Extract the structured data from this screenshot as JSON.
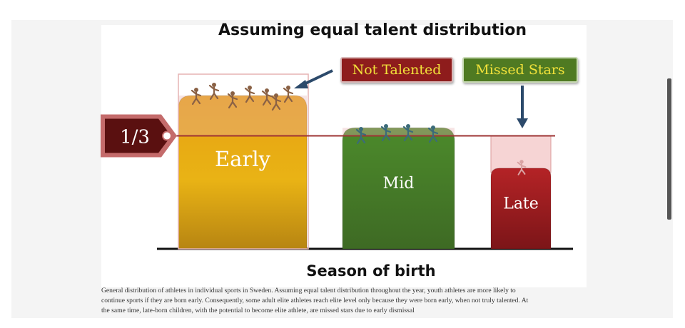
{
  "chart_data": {
    "type": "bar",
    "title": "Assuming equal talent distribution",
    "xlabel": "Season of birth",
    "categories": [
      "Early",
      "Mid",
      "Late"
    ],
    "values": [
      1.9,
      1.5,
      1.0
    ],
    "reference_line": {
      "label": "1/3",
      "value": 1.4
    },
    "annotations": [
      {
        "label": "Not Talented",
        "category": "Early"
      },
      {
        "label": "Missed Stars",
        "category": "Late"
      }
    ],
    "colors": {
      "Early": "#e0a612",
      "Mid": "#4f8a2e",
      "Late": "#a21f22",
      "excess_overlay": "#e8b1b1",
      "missing_overlay": "#f6d4d4",
      "reference_line": "#9e3434",
      "arrow": "#2c4a6b"
    },
    "icons": [
      "athletes-icon",
      "athlete-icon"
    ],
    "ylim": [
      0,
      2.2
    ]
  },
  "caption": {
    "lines": [
      "General distribution of athletes in individual sports in Sweden. Assuming equal talent distribution throughout the year, youth athletes are more likely to",
      "continue sports if they are born early. Consequently, some adult elite athletes reach elite level only because they were born early, when not truly talented. At",
      "the same time, late-born children, with the potential to become elite athlete, are missed stars due to early dismissal"
    ]
  }
}
